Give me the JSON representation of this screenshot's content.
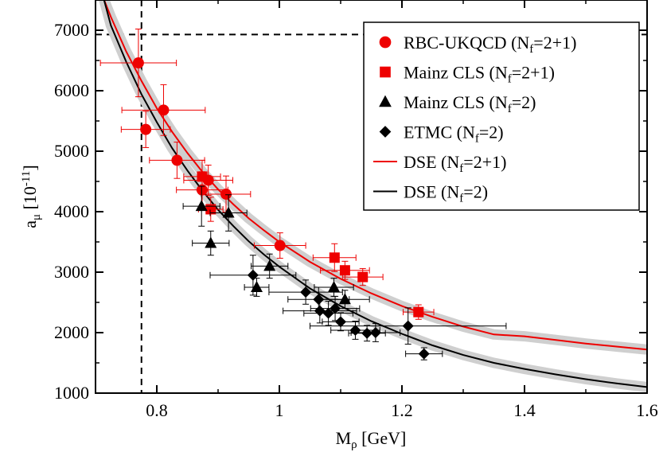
{
  "chart_data": {
    "type": "scatter",
    "xlabel": {
      "main": "M",
      "sub": "ρ",
      "unit": " [GeV]"
    },
    "ylabel": {
      "main": "a",
      "sub": "μ",
      "unit_pre": " [10",
      "unit_sup": "-11",
      "unit_post": "]"
    },
    "xlim": [
      0.7,
      1.6
    ],
    "ylim": [
      1000,
      7500
    ],
    "xticks": [
      {
        "v": 0.8,
        "label": "0.8"
      },
      {
        "v": 1.0,
        "label": "1"
      },
      {
        "v": 1.2,
        "label": "1.2"
      },
      {
        "v": 1.4,
        "label": "1.4"
      },
      {
        "v": 1.6,
        "label": "1.6"
      }
    ],
    "yticks": [
      {
        "v": 1000,
        "label": "1000"
      },
      {
        "v": 2000,
        "label": "2000"
      },
      {
        "v": 3000,
        "label": "3000"
      },
      {
        "v": 4000,
        "label": "4000"
      },
      {
        "v": 5000,
        "label": "5000"
      },
      {
        "v": 6000,
        "label": "6000"
      },
      {
        "v": 7000,
        "label": "7000"
      }
    ],
    "reference_lines": {
      "x": 0.775,
      "y": 6930
    },
    "legend_position": "top-right",
    "legend": [
      {
        "kind": "circle",
        "color": "#ee0000",
        "main": "RBC-UKQCD (N",
        "sub": "f",
        "post": "=2+1)"
      },
      {
        "kind": "square",
        "color": "#ee0000",
        "main": "Mainz CLS (N",
        "sub": "f",
        "post": "=2+1)"
      },
      {
        "kind": "triangle",
        "color": "#000000",
        "main": "Mainz CLS (N",
        "sub": "f",
        "post": "=2)"
      },
      {
        "kind": "diamond",
        "color": "#000000",
        "main": "ETMC (N",
        "sub": "f",
        "post": "=2)"
      },
      {
        "kind": "line",
        "color": "#ee0000",
        "main": "DSE (N",
        "sub": "f",
        "post": "=2+1)"
      },
      {
        "kind": "line",
        "color": "#000000",
        "main": "DSE (N",
        "sub": "f",
        "post": "=2)"
      }
    ],
    "series": [
      {
        "name": "RBC-UKQCD (Nf=2+1)",
        "marker": "circle",
        "color": "#ee0000",
        "points": [
          {
            "x": 0.77,
            "y": 6460,
            "xerr": 0.062,
            "yerr": 560
          },
          {
            "x": 0.782,
            "y": 5360,
            "xerr": 0.04,
            "yerr": 300
          },
          {
            "x": 0.811,
            "y": 5680,
            "xerr": 0.068,
            "yerr": 420
          },
          {
            "x": 0.833,
            "y": 4850,
            "xerr": 0.045,
            "yerr": 300
          },
          {
            "x": 0.874,
            "y": 4360,
            "xerr": 0.042,
            "yerr": 300
          },
          {
            "x": 0.884,
            "y": 4520,
            "xerr": 0.04,
            "yerr": 250
          },
          {
            "x": 0.913,
            "y": 4290,
            "xerr": 0.04,
            "yerr": 300
          },
          {
            "x": 1.001,
            "y": 3440,
            "xerr": 0.042,
            "yerr": 210
          }
        ]
      },
      {
        "name": "Mainz CLS (Nf=2+1)",
        "marker": "square",
        "color": "#ee0000",
        "points": [
          {
            "x": 0.874,
            "y": 4580,
            "xerr": 0.03,
            "yerr": 270
          },
          {
            "x": 0.888,
            "y": 4040,
            "xerr": 0.02,
            "yerr": 200
          },
          {
            "x": 1.09,
            "y": 3240,
            "xerr": 0.035,
            "yerr": 230
          },
          {
            "x": 1.107,
            "y": 3030,
            "xerr": 0.04,
            "yerr": 150
          },
          {
            "x": 1.136,
            "y": 2920,
            "xerr": 0.033,
            "yerr": 140
          },
          {
            "x": 1.227,
            "y": 2340,
            "xerr": 0.025,
            "yerr": 120
          }
        ]
      },
      {
        "name": "Mainz CLS (Nf=2)",
        "marker": "triangle",
        "color": "#000000",
        "points": [
          {
            "x": 0.873,
            "y": 4090,
            "xerr": 0.03,
            "yerr": 330
          },
          {
            "x": 0.888,
            "y": 3480,
            "xerr": 0.03,
            "yerr": 200
          },
          {
            "x": 0.917,
            "y": 3980,
            "xerr": 0.03,
            "yerr": 300
          },
          {
            "x": 0.963,
            "y": 2750,
            "xerr": 0.02,
            "yerr": 150
          },
          {
            "x": 0.984,
            "y": 3100,
            "xerr": 0.03,
            "yerr": 200
          },
          {
            "x": 1.089,
            "y": 2750,
            "xerr": 0.032,
            "yerr": 150
          },
          {
            "x": 1.107,
            "y": 2550,
            "xerr": 0.04,
            "yerr": 150
          }
        ]
      },
      {
        "name": "ETMC (Nf=2)",
        "marker": "diamond",
        "color": "#000000",
        "points": [
          {
            "x": 0.957,
            "y": 2950,
            "xerr": 0.07,
            "yerr": 330
          },
          {
            "x": 1.043,
            "y": 2670,
            "xerr": 0.06,
            "yerr": 200
          },
          {
            "x": 1.064,
            "y": 2550,
            "xerr": 0.05,
            "yerr": 200
          },
          {
            "x": 1.066,
            "y": 2360,
            "xerr": 0.06,
            "yerr": 200
          },
          {
            "x": 1.08,
            "y": 2320,
            "xerr": 0.04,
            "yerr": 200
          },
          {
            "x": 1.091,
            "y": 2400,
            "xerr": 0.04,
            "yerr": 200
          },
          {
            "x": 1.1,
            "y": 2180,
            "xerr": 0.03,
            "yerr": 150
          },
          {
            "x": 1.124,
            "y": 2040,
            "xerr": 0.04,
            "yerr": 150
          },
          {
            "x": 1.143,
            "y": 1990,
            "xerr": 0.03,
            "yerr": 130
          },
          {
            "x": 1.157,
            "y": 2000,
            "xerr": 0.04,
            "yerr": 150
          },
          {
            "x": 1.21,
            "y": 2110,
            "xerr": 0.16,
            "yerr": 300
          },
          {
            "x": 1.236,
            "y": 1650,
            "xerr": 0.03,
            "yerr": 100
          }
        ]
      }
    ],
    "curves": [
      {
        "name": "DSE (Nf=2+1)",
        "color": "#ee0000",
        "x": [
          0.7,
          0.725,
          0.75,
          0.775,
          0.8,
          0.825,
          0.85,
          0.875,
          0.9,
          0.925,
          0.95,
          0.975,
          1.0,
          1.05,
          1.1,
          1.15,
          1.2,
          1.25,
          1.3,
          1.35,
          1.4,
          1.45,
          1.5,
          1.55,
          1.6
        ],
        "y": [
          7860,
          7220,
          6650,
          6160,
          5710,
          5320,
          4970,
          4650,
          4370,
          4120,
          3890,
          3690,
          3500,
          3170,
          2890,
          2650,
          2440,
          2260,
          2100,
          1970,
          1940,
          1880,
          1820,
          1770,
          1720
        ]
      },
      {
        "name": "DSE (Nf=2)",
        "color": "#000000",
        "x": [
          0.71,
          0.725,
          0.75,
          0.775,
          0.8,
          0.825,
          0.85,
          0.875,
          0.9,
          0.925,
          0.95,
          0.975,
          1.0,
          1.05,
          1.1,
          1.15,
          1.2,
          1.25,
          1.3,
          1.35,
          1.4,
          1.45,
          1.5,
          1.55,
          1.6
        ],
        "y": [
          7650,
          7080,
          6480,
          5940,
          5480,
          5050,
          4680,
          4340,
          4030,
          3760,
          3510,
          3290,
          3090,
          2730,
          2440,
          2190,
          1980,
          1790,
          1630,
          1500,
          1400,
          1310,
          1230,
          1160,
          1100
        ]
      }
    ]
  }
}
